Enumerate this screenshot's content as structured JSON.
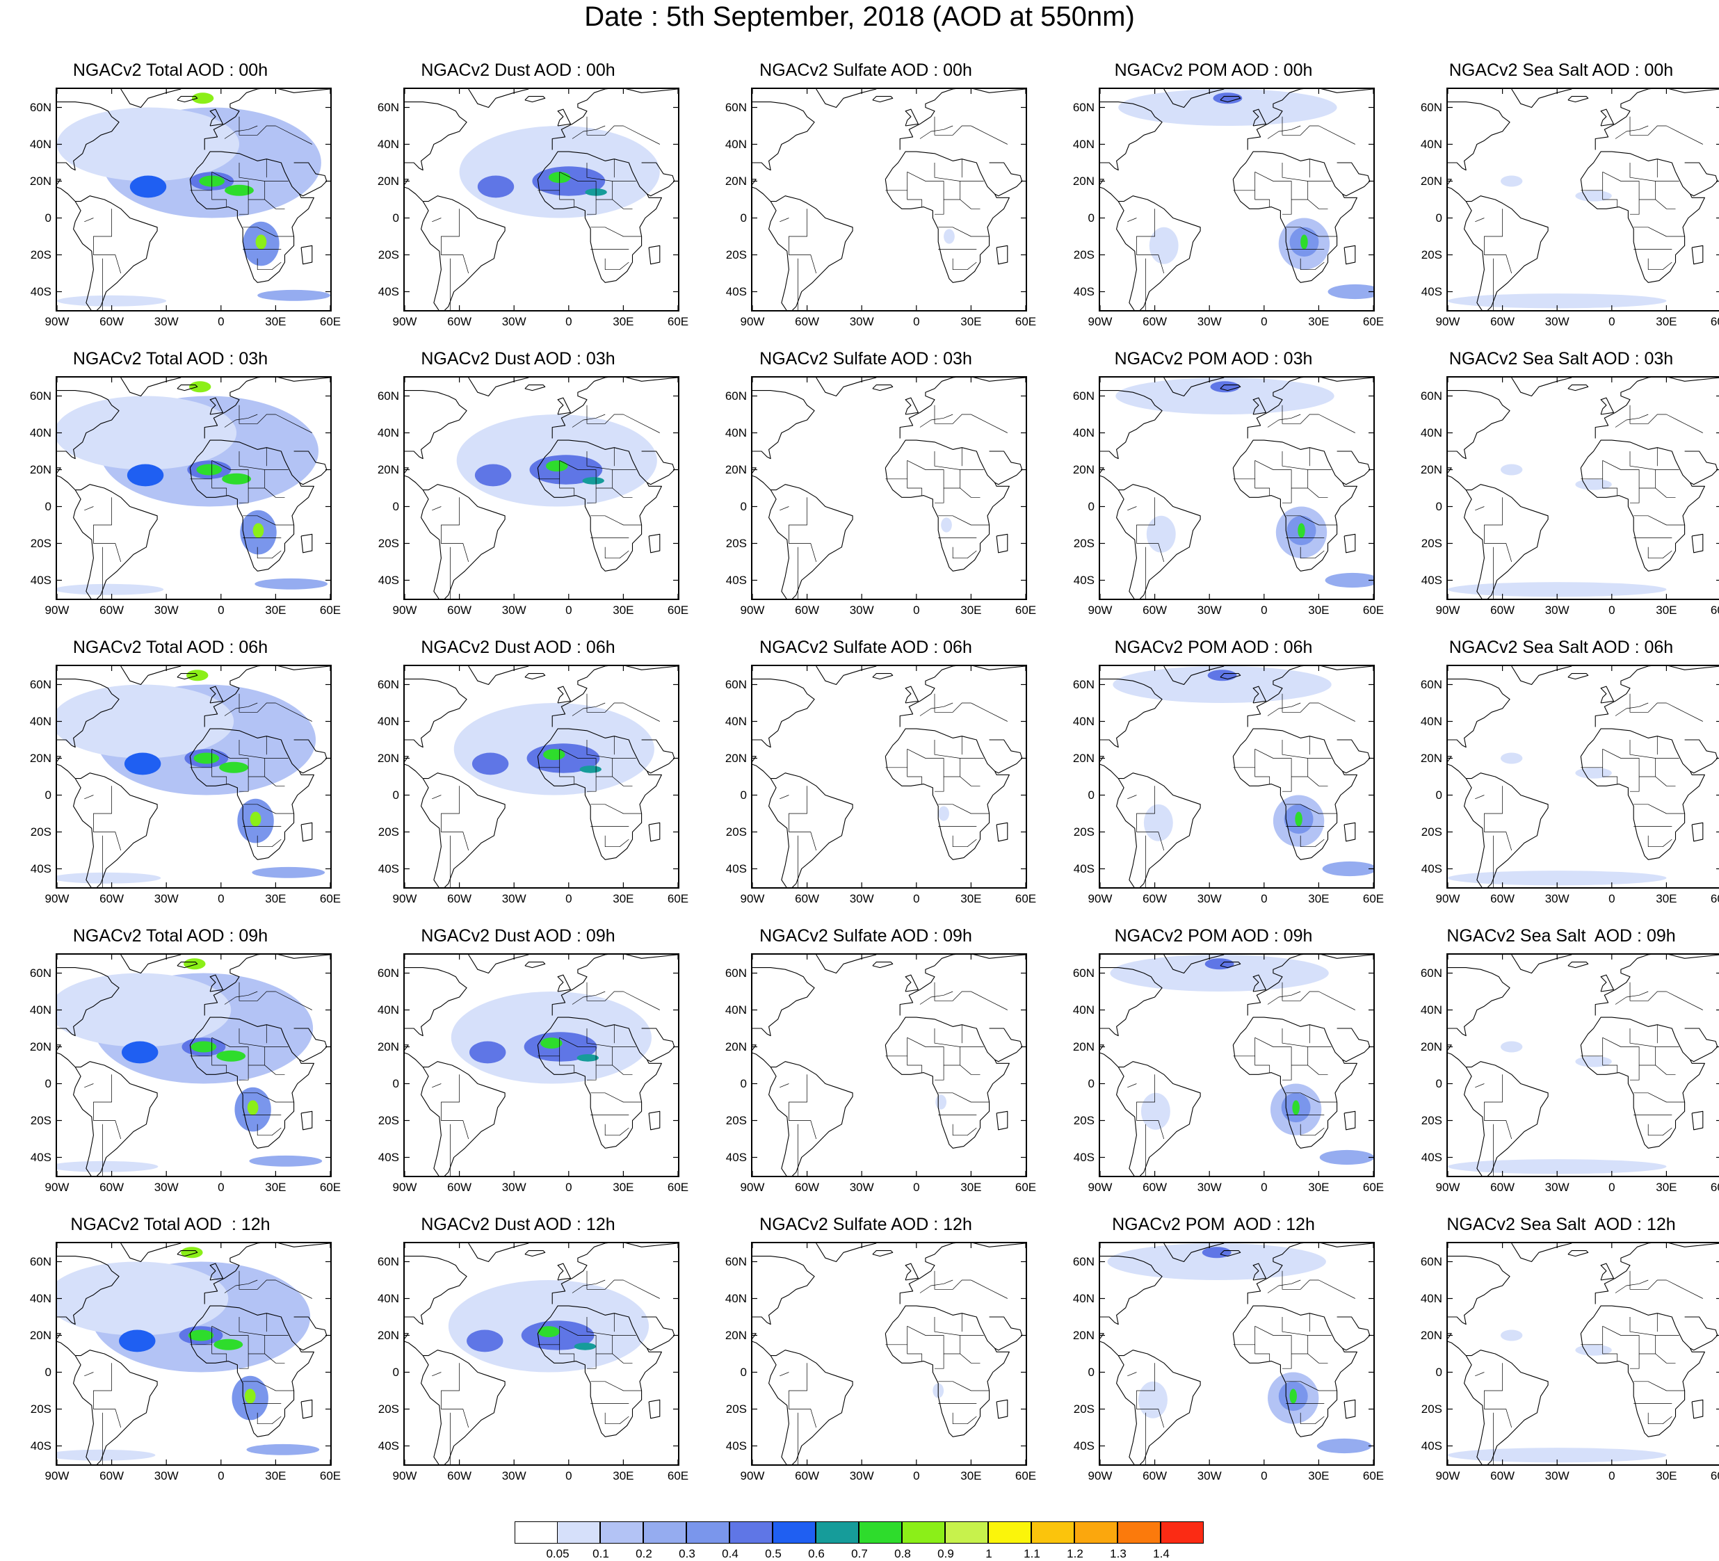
{
  "title": "Date : 5th September, 2018 (AOD at 550nm)",
  "chart_data": {
    "type": "heatmap",
    "title": "Date : 5th September, 2018 (AOD at 550nm)",
    "variable": "AOD at 550nm",
    "date": "5th September, 2018",
    "lon_ticks": [
      "90W",
      "60W",
      "30W",
      "0",
      "30E",
      "60E"
    ],
    "lat_ticks": [
      "60N",
      "40N",
      "20N",
      "0",
      "20S",
      "40S"
    ],
    "lon_range": [
      -90,
      60
    ],
    "lat_range": [
      -50,
      70
    ],
    "columns": [
      "Total",
      "Dust",
      "Sulfate",
      "POM",
      "Sea Salt"
    ],
    "rows": [
      "00h",
      "03h",
      "06h",
      "09h",
      "12h"
    ],
    "panels": [
      [
        "NGACv2 Total AOD : 00h",
        "NGACv2 Dust AOD : 00h",
        "NGACv2 Sulfate AOD : 00h",
        "NGACv2 POM AOD : 00h",
        "NGACv2 Sea Salt AOD : 00h"
      ],
      [
        "NGACv2 Total AOD : 03h",
        "NGACv2 Dust AOD : 03h",
        "NGACv2 Sulfate AOD : 03h",
        "NGACv2 POM AOD : 03h",
        "NGACv2 Sea Salt AOD : 03h"
      ],
      [
        "NGACv2 Total AOD : 06h",
        "NGACv2 Dust AOD : 06h",
        "NGACv2 Sulfate AOD : 06h",
        "NGACv2 POM AOD : 06h",
        "NGACv2 Sea Salt AOD : 06h"
      ],
      [
        "NGACv2 Total AOD : 09h",
        "NGACv2 Dust AOD : 09h",
        "NGACv2 Sulfate AOD : 09h",
        "NGACv2 POM AOD : 09h",
        "NGACv2 Sea Salt  AOD : 09h"
      ],
      [
        "NGACv2 Total AOD  : 12h",
        "NGACv2 Dust AOD : 12h",
        "NGACv2 Sulfate AOD : 12h",
        "NGACv2 POM  AOD : 12h",
        "NGACv2 Sea Salt  AOD : 12h"
      ]
    ],
    "colorbar": {
      "levels": [
        "0.05",
        "0.1",
        "0.2",
        "0.3",
        "0.4",
        "0.5",
        "0.6",
        "0.7",
        "0.8",
        "0.9",
        "1",
        "1.1",
        "1.2",
        "1.3",
        "1.4"
      ],
      "colors": [
        "#ffffff",
        "#d6e0fa",
        "#b3c3f5",
        "#95acf0",
        "#7a96ec",
        "#5f76e6",
        "#1f5ff2",
        "#169c9a",
        "#2edc2c",
        "#8bef18",
        "#c7f24c",
        "#fbf50a",
        "#fbc40c",
        "#fba70d",
        "#fb7a0c",
        "#fb2b14"
      ]
    },
    "plumes": {
      "Total": [
        {
          "lon": -10,
          "lat": 18,
          "rlon": 45,
          "rlat": 13,
          "level": 3
        },
        {
          "lon": -5,
          "lat": 30,
          "rlon": 60,
          "rlat": 30,
          "level": 2
        },
        {
          "lon": -40,
          "lat": 40,
          "rlon": 50,
          "rlat": 20,
          "level": 1
        },
        {
          "lon": -40,
          "lat": 17,
          "rlon": 10,
          "rlat": 6,
          "level": 6
        },
        {
          "lon": -5,
          "lat": 20,
          "rlon": 12,
          "rlat": 5,
          "level": 5
        },
        {
          "lon": -5,
          "lat": 20,
          "rlon": 7,
          "rlat": 3,
          "level": 8
        },
        {
          "lon": 10,
          "lat": 15,
          "rlon": 8,
          "rlat": 3,
          "level": 8
        },
        {
          "lon": 22,
          "lat": -14,
          "rlon": 10,
          "rlat": 12,
          "level": 4
        },
        {
          "lon": 22,
          "lat": -13,
          "rlon": 3,
          "rlat": 4,
          "level": 9
        },
        {
          "lon": -10,
          "lat": 65,
          "rlon": 6,
          "rlat": 3,
          "level": 9
        },
        {
          "lon": 40,
          "lat": -42,
          "rlon": 20,
          "rlat": 3,
          "level": 3
        },
        {
          "lon": -60,
          "lat": -45,
          "rlon": 30,
          "rlat": 3,
          "level": 1
        }
      ],
      "Dust": [
        {
          "lon": -15,
          "lat": 20,
          "rlon": 40,
          "rlat": 12,
          "level": 3
        },
        {
          "lon": -5,
          "lat": 25,
          "rlon": 55,
          "rlat": 25,
          "level": 1
        },
        {
          "lon": -40,
          "lat": 17,
          "rlon": 10,
          "rlat": 6,
          "level": 5
        },
        {
          "lon": 0,
          "lat": 20,
          "rlon": 20,
          "rlat": 8,
          "level": 5
        },
        {
          "lon": -5,
          "lat": 22,
          "rlon": 6,
          "rlat": 3,
          "level": 8
        },
        {
          "lon": 15,
          "lat": 14,
          "rlon": 6,
          "rlat": 2,
          "level": 7
        }
      ],
      "Sulfate": [
        {
          "lon": 18,
          "lat": -10,
          "rlon": 3,
          "rlat": 4,
          "level": 1
        }
      ],
      "POM": [
        {
          "lon": -20,
          "lat": 60,
          "rlon": 60,
          "rlat": 10,
          "level": 1
        },
        {
          "lon": -20,
          "lat": 65,
          "rlon": 8,
          "rlat": 3,
          "level": 5
        },
        {
          "lon": 22,
          "lat": -14,
          "rlon": 14,
          "rlat": 14,
          "level": 2
        },
        {
          "lon": 22,
          "lat": -13,
          "rlon": 8,
          "rlat": 8,
          "level": 4
        },
        {
          "lon": 22,
          "lat": -13,
          "rlon": 2,
          "rlat": 4,
          "level": 8
        },
        {
          "lon": 50,
          "lat": -40,
          "rlon": 15,
          "rlat": 4,
          "level": 3
        },
        {
          "lon": -55,
          "lat": -15,
          "rlon": 8,
          "rlat": 10,
          "level": 1
        }
      ],
      "Sea Salt": [
        {
          "lon": -30,
          "lat": -45,
          "rlon": 60,
          "rlat": 4,
          "level": 1
        },
        {
          "lon": -10,
          "lat": 12,
          "rlon": 10,
          "rlat": 3,
          "level": 1
        },
        {
          "lon": -55,
          "lat": 20,
          "rlon": 6,
          "rlat": 3,
          "level": 1
        }
      ]
    }
  }
}
